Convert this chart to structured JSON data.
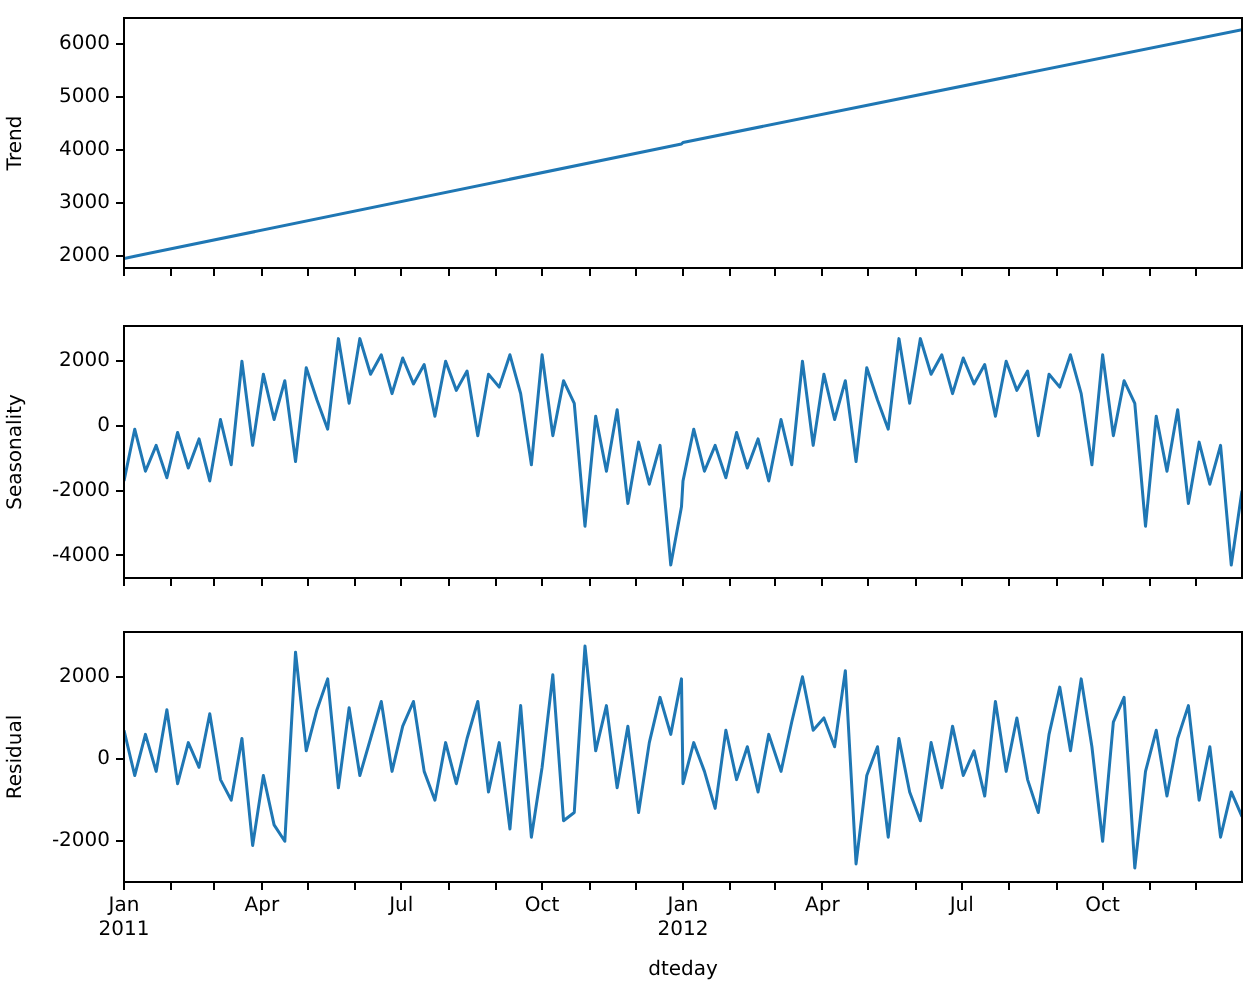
{
  "chart_data": [
    {
      "type": "line",
      "ylabel": "Trend",
      "ylim": [
        1780,
        6480
      ],
      "yticks": [
        2000,
        3000,
        4000,
        5000,
        6000
      ],
      "xlim": [
        "2011-01-01",
        "2012-12-31"
      ],
      "tick_labels": "y",
      "grid": false,
      "legend": false,
      "xticks": [
        {
          "value": "2011-01-01",
          "label": null
        },
        {
          "value": "2011-02-01",
          "label": null
        },
        {
          "value": "2011-03-01",
          "label": null
        },
        {
          "value": "2011-04-01",
          "label": null
        },
        {
          "value": "2011-05-01",
          "label": null
        },
        {
          "value": "2011-06-01",
          "label": null
        },
        {
          "value": "2011-07-01",
          "label": null
        },
        {
          "value": "2011-08-01",
          "label": null
        },
        {
          "value": "2011-09-01",
          "label": null
        },
        {
          "value": "2011-10-01",
          "label": null
        },
        {
          "value": "2011-11-01",
          "label": null
        },
        {
          "value": "2011-12-01",
          "label": null
        },
        {
          "value": "2012-01-01",
          "label": null
        },
        {
          "value": "2012-02-01",
          "label": null
        },
        {
          "value": "2012-03-01",
          "label": null
        },
        {
          "value": "2012-04-01",
          "label": null
        },
        {
          "value": "2012-05-01",
          "label": null
        },
        {
          "value": "2012-06-01",
          "label": null
        },
        {
          "value": "2012-07-01",
          "label": null
        },
        {
          "value": "2012-08-01",
          "label": null
        },
        {
          "value": "2012-09-01",
          "label": null
        },
        {
          "value": "2012-10-01",
          "label": null
        },
        {
          "value": "2012-11-01",
          "label": null
        },
        {
          "value": "2012-12-01",
          "label": null
        }
      ],
      "series": [
        {
          "color": "#1f77b4",
          "x": [
            "2011-01-01",
            "2011-12-31",
            "2012-01-01",
            "2012-12-31"
          ],
          "values": [
            1960,
            4110,
            4140,
            6260
          ]
        }
      ]
    },
    {
      "type": "line",
      "ylabel": "Seasonality",
      "ylim": [
        -4700,
        3090
      ],
      "yticks": [
        -4000,
        -2000,
        0,
        2000
      ],
      "xlim": [
        "2011-01-01",
        "2012-12-31"
      ],
      "tick_labels": "y",
      "grid": false,
      "legend": false,
      "xticks": [
        {
          "value": "2011-01-01",
          "label": null
        },
        {
          "value": "2011-02-01",
          "label": null
        },
        {
          "value": "2011-03-01",
          "label": null
        },
        {
          "value": "2011-04-01",
          "label": null
        },
        {
          "value": "2011-05-01",
          "label": null
        },
        {
          "value": "2011-06-01",
          "label": null
        },
        {
          "value": "2011-07-01",
          "label": null
        },
        {
          "value": "2011-08-01",
          "label": null
        },
        {
          "value": "2011-09-01",
          "label": null
        },
        {
          "value": "2011-10-01",
          "label": null
        },
        {
          "value": "2011-11-01",
          "label": null
        },
        {
          "value": "2011-12-01",
          "label": null
        },
        {
          "value": "2012-01-01",
          "label": null
        },
        {
          "value": "2012-02-01",
          "label": null
        },
        {
          "value": "2012-03-01",
          "label": null
        },
        {
          "value": "2012-04-01",
          "label": null
        },
        {
          "value": "2012-05-01",
          "label": null
        },
        {
          "value": "2012-06-01",
          "label": null
        },
        {
          "value": "2012-07-01",
          "label": null
        },
        {
          "value": "2012-08-01",
          "label": null
        },
        {
          "value": "2012-09-01",
          "label": null
        },
        {
          "value": "2012-10-01",
          "label": null
        },
        {
          "value": "2012-11-01",
          "label": null
        },
        {
          "value": "2012-12-01",
          "label": null
        }
      ],
      "series": [
        {
          "color": "#1f77b4",
          "x": [
            "2011-01-01",
            "2011-01-08",
            "2011-01-15",
            "2011-01-22",
            "2011-01-29",
            "2011-02-05",
            "2011-02-12",
            "2011-02-19",
            "2011-02-26",
            "2011-03-05",
            "2011-03-12",
            "2011-03-19",
            "2011-03-26",
            "2011-04-02",
            "2011-04-09",
            "2011-04-16",
            "2011-04-23",
            "2011-04-30",
            "2011-05-07",
            "2011-05-14",
            "2011-05-21",
            "2011-05-28",
            "2011-06-04",
            "2011-06-11",
            "2011-06-18",
            "2011-06-25",
            "2011-07-02",
            "2011-07-09",
            "2011-07-16",
            "2011-07-23",
            "2011-07-30",
            "2011-08-06",
            "2011-08-13",
            "2011-08-20",
            "2011-08-27",
            "2011-09-03",
            "2011-09-10",
            "2011-09-17",
            "2011-09-24",
            "2011-10-01",
            "2011-10-08",
            "2011-10-15",
            "2011-10-22",
            "2011-10-29",
            "2011-11-05",
            "2011-11-12",
            "2011-11-19",
            "2011-11-26",
            "2011-12-03",
            "2011-12-10",
            "2011-12-17",
            "2011-12-24",
            "2011-12-31",
            "2012-01-01",
            "2012-01-08",
            "2012-01-15",
            "2012-01-22",
            "2012-01-29",
            "2012-02-05",
            "2012-02-12",
            "2012-02-19",
            "2012-02-26",
            "2012-03-05",
            "2012-03-12",
            "2012-03-19",
            "2012-03-26",
            "2012-04-02",
            "2012-04-09",
            "2012-04-16",
            "2012-04-23",
            "2012-04-30",
            "2012-05-07",
            "2012-05-14",
            "2012-05-21",
            "2012-05-28",
            "2012-06-04",
            "2012-06-11",
            "2012-06-18",
            "2012-06-25",
            "2012-07-02",
            "2012-07-09",
            "2012-07-16",
            "2012-07-23",
            "2012-07-30",
            "2012-08-06",
            "2012-08-13",
            "2012-08-20",
            "2012-08-27",
            "2012-09-03",
            "2012-09-10",
            "2012-09-17",
            "2012-09-24",
            "2012-10-01",
            "2012-10-08",
            "2012-10-15",
            "2012-10-22",
            "2012-10-29",
            "2012-11-05",
            "2012-11-12",
            "2012-11-19",
            "2012-11-26",
            "2012-12-03",
            "2012-12-10",
            "2012-12-17",
            "2012-12-24",
            "2012-12-31"
          ],
          "values": [
            -1700,
            -100,
            -1400,
            -600,
            -1600,
            -200,
            -1300,
            -400,
            -1700,
            200,
            -1200,
            2000,
            -600,
            1600,
            200,
            1400,
            -1100,
            1800,
            800,
            -100,
            2700,
            700,
            2700,
            1600,
            2200,
            1000,
            2100,
            1300,
            1900,
            300,
            2000,
            1100,
            1700,
            -300,
            1600,
            1200,
            2200,
            1000,
            -1200,
            2200,
            -300,
            1400,
            700,
            -3100,
            300,
            -1400,
            500,
            -2400,
            -500,
            -1800,
            -600,
            -4300,
            -2500,
            -1700,
            -100,
            -1400,
            -600,
            -1600,
            -200,
            -1300,
            -400,
            -1700,
            200,
            -1200,
            2000,
            -600,
            1600,
            200,
            1400,
            -1100,
            1800,
            800,
            -100,
            2700,
            700,
            2700,
            1600,
            2200,
            1000,
            2100,
            1300,
            1900,
            300,
            2000,
            1100,
            1700,
            -300,
            1600,
            1200,
            2200,
            1000,
            -1200,
            2200,
            -300,
            1400,
            700,
            -3100,
            300,
            -1400,
            500,
            -2400,
            -500,
            -1800,
            -600,
            -4300,
            -2000
          ]
        }
      ]
    },
    {
      "type": "line",
      "ylabel": "Residual",
      "xlabel": "dteday",
      "ylim": [
        -2990,
        3090
      ],
      "yticks": [
        -2000,
        0,
        2000
      ],
      "xlim": [
        "2011-01-01",
        "2012-12-31"
      ],
      "grid": false,
      "legend": false,
      "xticks": [
        {
          "value": "2011-01-01",
          "label": "Jan\n2011"
        },
        {
          "value": "2011-02-01",
          "label": null
        },
        {
          "value": "2011-03-01",
          "label": null
        },
        {
          "value": "2011-04-01",
          "label": "Apr"
        },
        {
          "value": "2011-05-01",
          "label": null
        },
        {
          "value": "2011-06-01",
          "label": null
        },
        {
          "value": "2011-07-01",
          "label": "Jul"
        },
        {
          "value": "2011-08-01",
          "label": null
        },
        {
          "value": "2011-09-01",
          "label": null
        },
        {
          "value": "2011-10-01",
          "label": "Oct"
        },
        {
          "value": "2011-11-01",
          "label": null
        },
        {
          "value": "2011-12-01",
          "label": null
        },
        {
          "value": "2012-01-01",
          "label": "Jan\n2012"
        },
        {
          "value": "2012-02-01",
          "label": null
        },
        {
          "value": "2012-03-01",
          "label": null
        },
        {
          "value": "2012-04-01",
          "label": "Apr"
        },
        {
          "value": "2012-05-01",
          "label": null
        },
        {
          "value": "2012-06-01",
          "label": null
        },
        {
          "value": "2012-07-01",
          "label": "Jul"
        },
        {
          "value": "2012-08-01",
          "label": null
        },
        {
          "value": "2012-09-01",
          "label": null
        },
        {
          "value": "2012-10-01",
          "label": "Oct"
        },
        {
          "value": "2012-11-01",
          "label": null
        },
        {
          "value": "2012-12-01",
          "label": null
        }
      ],
      "series": [
        {
          "color": "#1f77b4",
          "x": [
            "2011-01-01",
            "2011-01-08",
            "2011-01-15",
            "2011-01-22",
            "2011-01-29",
            "2011-02-05",
            "2011-02-12",
            "2011-02-19",
            "2011-02-26",
            "2011-03-05",
            "2011-03-12",
            "2011-03-19",
            "2011-03-26",
            "2011-04-02",
            "2011-04-09",
            "2011-04-16",
            "2011-04-23",
            "2011-04-30",
            "2011-05-07",
            "2011-05-14",
            "2011-05-21",
            "2011-05-28",
            "2011-06-04",
            "2011-06-11",
            "2011-06-18",
            "2011-06-25",
            "2011-07-02",
            "2011-07-09",
            "2011-07-16",
            "2011-07-23",
            "2011-07-30",
            "2011-08-06",
            "2011-08-13",
            "2011-08-20",
            "2011-08-27",
            "2011-09-03",
            "2011-09-10",
            "2011-09-17",
            "2011-09-24",
            "2011-10-01",
            "2011-10-08",
            "2011-10-15",
            "2011-10-22",
            "2011-10-29",
            "2011-11-05",
            "2011-11-12",
            "2011-11-19",
            "2011-11-26",
            "2011-12-03",
            "2011-12-10",
            "2011-12-17",
            "2011-12-24",
            "2011-12-31",
            "2012-01-01",
            "2012-01-08",
            "2012-01-15",
            "2012-01-22",
            "2012-01-29",
            "2012-02-05",
            "2012-02-12",
            "2012-02-19",
            "2012-02-26",
            "2012-03-05",
            "2012-03-12",
            "2012-03-19",
            "2012-03-26",
            "2012-04-02",
            "2012-04-09",
            "2012-04-16",
            "2012-04-23",
            "2012-04-30",
            "2012-05-07",
            "2012-05-14",
            "2012-05-21",
            "2012-05-28",
            "2012-06-04",
            "2012-06-11",
            "2012-06-18",
            "2012-06-25",
            "2012-07-02",
            "2012-07-09",
            "2012-07-16",
            "2012-07-23",
            "2012-07-30",
            "2012-08-06",
            "2012-08-13",
            "2012-08-20",
            "2012-08-27",
            "2012-09-03",
            "2012-09-10",
            "2012-09-17",
            "2012-09-24",
            "2012-10-01",
            "2012-10-08",
            "2012-10-15",
            "2012-10-22",
            "2012-10-29",
            "2012-11-05",
            "2012-11-12",
            "2012-11-19",
            "2012-11-26",
            "2012-12-03",
            "2012-12-10",
            "2012-12-17",
            "2012-12-24",
            "2012-12-31"
          ],
          "values": [
            700,
            -400,
            600,
            -300,
            1200,
            -600,
            400,
            -200,
            1100,
            -500,
            -1000,
            500,
            -2100,
            -400,
            -1600,
            -2000,
            2600,
            200,
            1200,
            1950,
            -700,
            1250,
            -400,
            500,
            1400,
            -300,
            800,
            1400,
            -300,
            -1000,
            400,
            -600,
            500,
            1400,
            -800,
            400,
            -1700,
            1300,
            -1900,
            -200,
            2050,
            -1500,
            -1300,
            2750,
            200,
            1300,
            -700,
            800,
            -1300,
            400,
            1500,
            600,
            1950,
            -600,
            400,
            -300,
            -1200,
            700,
            -500,
            300,
            -800,
            600,
            -300,
            900,
            2000,
            700,
            1000,
            300,
            2150,
            -2550,
            -400,
            300,
            -1900,
            500,
            -800,
            -1500,
            400,
            -700,
            800,
            -400,
            200,
            -900,
            1400,
            -300,
            1000,
            -500,
            -1300,
            600,
            1750,
            200,
            1950,
            300,
            -2000,
            900,
            1500,
            -2650,
            -300,
            700,
            -900,
            500,
            1300,
            -1000,
            300,
            -1900,
            -800,
            -1400
          ]
        }
      ]
    }
  ]
}
